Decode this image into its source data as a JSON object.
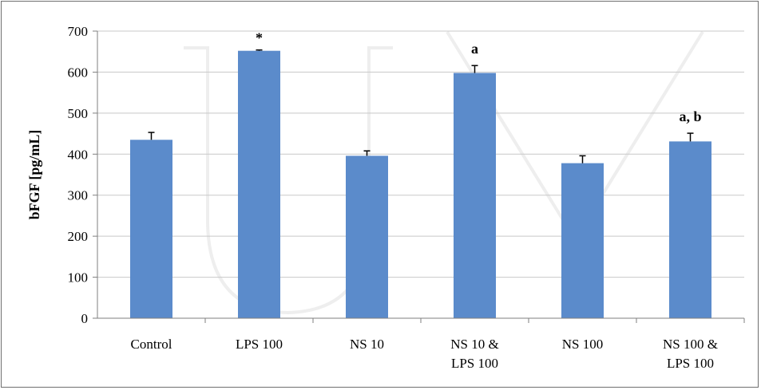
{
  "chart_data": {
    "type": "bar",
    "title": "",
    "xlabel": "",
    "ylabel": "bFGF [pg/mL]",
    "ylim": [
      0,
      700
    ],
    "ytick_step": 100,
    "grid": true,
    "legend": "none",
    "bar_color": "#5b8bcb",
    "categories": [
      [
        "Control"
      ],
      [
        "LPS 100"
      ],
      [
        "NS 10"
      ],
      [
        "NS 10 &",
        "LPS 100"
      ],
      [
        "NS 100"
      ],
      [
        "NS 100 &",
        "LPS 100"
      ]
    ],
    "values": [
      435,
      652,
      396,
      598,
      378,
      431
    ],
    "errors": [
      18,
      2,
      12,
      18,
      18,
      20
    ],
    "annotations": [
      "",
      "*",
      "",
      "a",
      "",
      "a, b"
    ]
  }
}
